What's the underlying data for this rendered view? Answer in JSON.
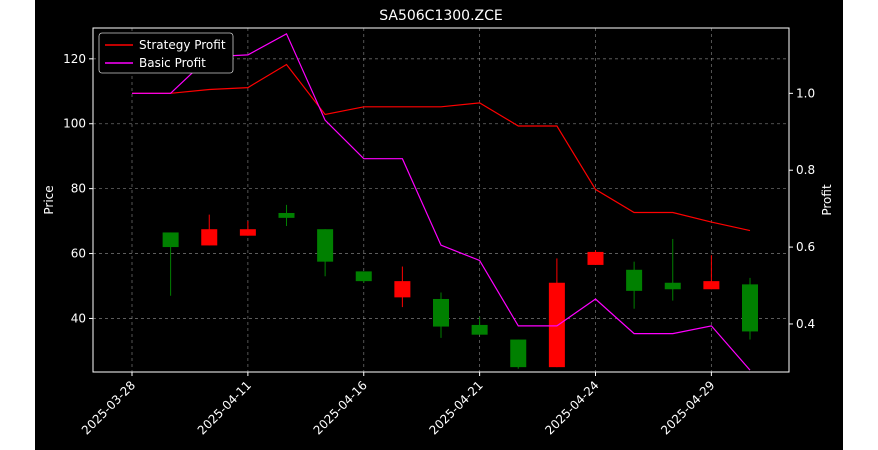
{
  "chart_data": {
    "type": "candlestick",
    "title": "SA506C1300.ZCE",
    "ylabel_left": "Price",
    "ylabel_right": "Profit",
    "grid": true,
    "legend_position": "top-left",
    "x_ticks": [
      "2025-03-28",
      "2025-04-11",
      "2025-04-16",
      "2025-04-21",
      "2025-04-24",
      "2025-04-29"
    ],
    "y_left_ticks": [
      40,
      60,
      80,
      100,
      120
    ],
    "y_left_range": [
      23.5,
      129.5
    ],
    "y_right_ticks": [
      0.4,
      0.6,
      0.8,
      1.0
    ],
    "y_right_range": [
      0.275,
      1.17
    ],
    "candles": [
      {
        "open": 66.5,
        "high": 66.5,
        "low": 47.0,
        "close": 62.0
      },
      {
        "open": 62.5,
        "high": 72.0,
        "low": 62.5,
        "close": 67.5
      },
      {
        "open": 65.5,
        "high": 70.0,
        "low": 65.5,
        "close": 67.5
      },
      {
        "open": 72.5,
        "high": 75.0,
        "low": 68.5,
        "close": 71.0
      },
      {
        "open": 67.5,
        "high": 67.5,
        "low": 53.0,
        "close": 57.5
      },
      {
        "open": 54.5,
        "high": 54.5,
        "low": 51.0,
        "close": 51.5
      },
      {
        "open": 46.5,
        "high": 56.0,
        "low": 43.5,
        "close": 51.5
      },
      {
        "open": 46.0,
        "high": 48.0,
        "low": 34.0,
        "close": 37.5
      },
      {
        "open": 38.0,
        "high": 40.5,
        "low": 35.0,
        "close": 35.0
      },
      {
        "open": 33.5,
        "high": 33.5,
        "low": 24.5,
        "close": 25.0
      },
      {
        "open": 25.0,
        "high": 58.5,
        "low": 25.0,
        "close": 51.0
      },
      {
        "open": 56.5,
        "high": 61.0,
        "low": 56.5,
        "close": 60.5
      },
      {
        "open": 55.0,
        "high": 57.5,
        "low": 43.0,
        "close": 48.5
      },
      {
        "open": 51.0,
        "high": 64.5,
        "low": 45.5,
        "close": 49.0
      },
      {
        "open": 49.0,
        "high": 59.5,
        "low": 49.0,
        "close": 51.5
      },
      {
        "open": 50.5,
        "high": 52.5,
        "low": 33.5,
        "close": 36.0
      }
    ],
    "series": [
      {
        "name": "Strategy Profit",
        "color": "#ff0000",
        "values": [
          1.0,
          1.0,
          1.01,
          1.015,
          1.075,
          0.945,
          0.965,
          0.965,
          0.965,
          0.975,
          0.915,
          0.915,
          0.75,
          0.69,
          0.69,
          0.665,
          0.643
        ]
      },
      {
        "name": "Basic Profit",
        "color": "#ff00ff",
        "values": [
          1.0,
          1.0,
          1.095,
          1.1,
          1.155,
          0.93,
          0.83,
          0.83,
          0.605,
          0.565,
          0.395,
          0.395,
          0.465,
          0.375,
          0.375,
          0.395,
          0.28
        ]
      }
    ],
    "candle_up_color": "#ff0000",
    "candle_down_color": "#008000"
  }
}
